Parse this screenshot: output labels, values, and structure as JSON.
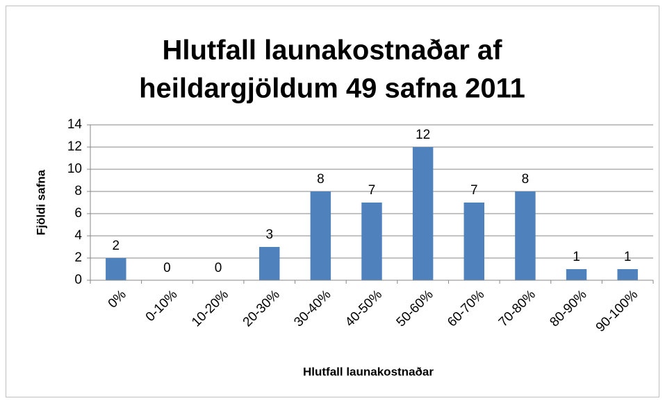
{
  "chart_data": {
    "type": "bar",
    "title": [
      "Hlutfall launakostnaðar af",
      "heildargjöldum 49 safna 2011"
    ],
    "x_label": "Hlutfall launakostnaðar",
    "y_label": "Fjöldi safna",
    "categories": [
      "0%",
      "0-10%",
      "10-20%",
      "20-30%",
      "30-40%",
      "40-50%",
      "50-60%",
      "60-70%",
      "70-80%",
      "80-90%",
      "90-100%"
    ],
    "values": [
      2,
      0,
      0,
      3,
      8,
      7,
      12,
      7,
      8,
      1,
      1
    ],
    "color": "#4f81bd",
    "ylim": [
      0,
      14
    ],
    "yticks": [
      0,
      2,
      4,
      6,
      8,
      10,
      12,
      14
    ],
    "grid": true
  }
}
